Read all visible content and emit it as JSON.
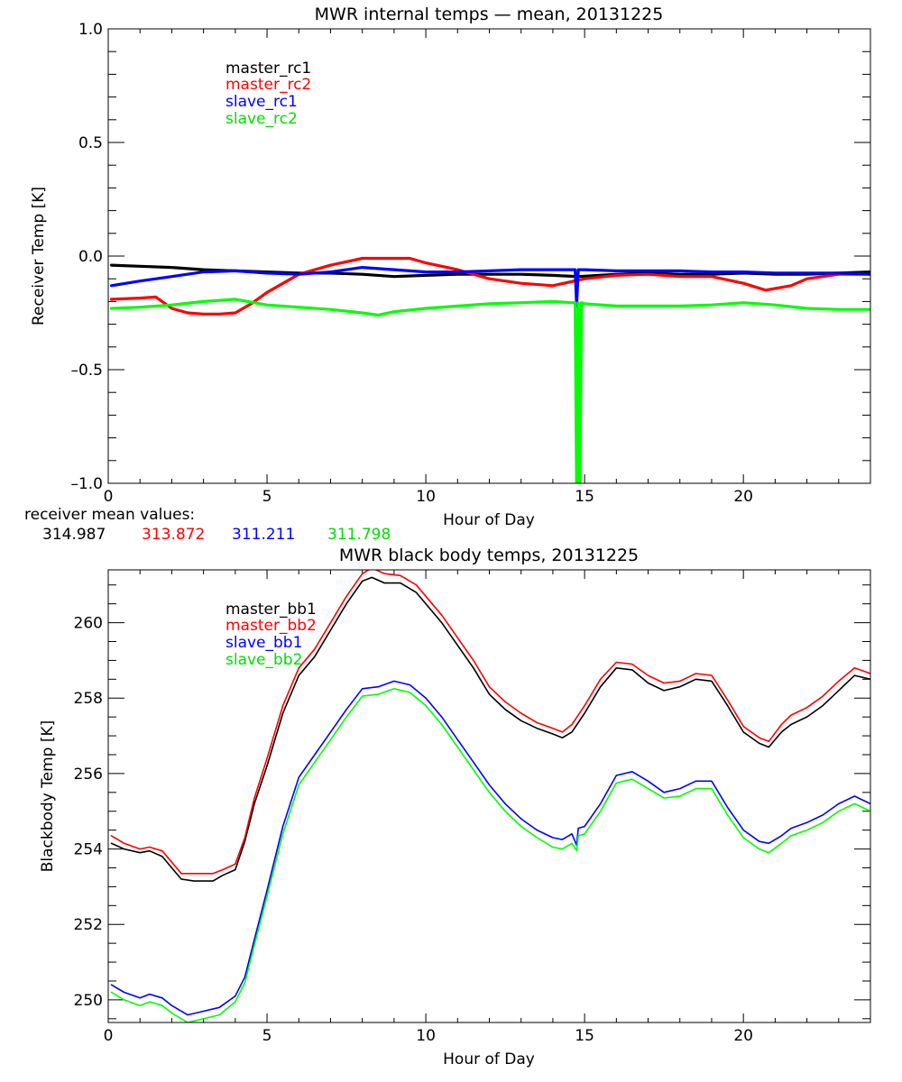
{
  "chart_data": [
    {
      "type": "line",
      "title": "MWR internal temps — mean, 20131225",
      "xlabel": "Hour of Day",
      "ylabel": "Receiver Temp [K]",
      "xlim": [
        0,
        24
      ],
      "ylim": [
        -1.0,
        1.0
      ],
      "xticks": [
        0,
        5,
        10,
        15,
        20
      ],
      "xtick_labels": [
        "0",
        "5",
        "10",
        "15",
        "20"
      ],
      "yticks": [
        -1.0,
        -0.5,
        0.0,
        0.5,
        1.0
      ],
      "ytick_labels": [
        "–1.0",
        "–0.5",
        "0.0",
        "0.5",
        "1.0"
      ],
      "legend_position": "top-left",
      "series": [
        {
          "name": "master_rc1",
          "color": "#000000",
          "x": [
            0.1,
            1,
            2,
            3,
            4,
            5,
            6,
            7,
            8,
            9,
            10,
            11,
            12,
            13,
            14,
            14.8,
            16,
            17,
            18,
            19,
            20,
            21,
            22,
            23,
            24
          ],
          "y": [
            -0.04,
            -0.045,
            -0.05,
            -0.06,
            -0.065,
            -0.07,
            -0.075,
            -0.075,
            -0.08,
            -0.09,
            -0.085,
            -0.08,
            -0.08,
            -0.08,
            -0.085,
            -0.09,
            -0.08,
            -0.075,
            -0.08,
            -0.08,
            -0.075,
            -0.08,
            -0.08,
            -0.075,
            -0.07
          ]
        },
        {
          "name": "master_rc2",
          "color": "#ff0000",
          "x": [
            0.1,
            1,
            1.5,
            2,
            2.5,
            3,
            3.5,
            4,
            4.5,
            5,
            6,
            7,
            8,
            9,
            9.5,
            10,
            11,
            12,
            13,
            14,
            15,
            16,
            17,
            18,
            19,
            20,
            20.7,
            21.5,
            22,
            23,
            24
          ],
          "y": [
            -0.19,
            -0.185,
            -0.18,
            -0.23,
            -0.25,
            -0.255,
            -0.255,
            -0.25,
            -0.21,
            -0.16,
            -0.08,
            -0.04,
            -0.01,
            -0.01,
            -0.01,
            -0.03,
            -0.06,
            -0.1,
            -0.12,
            -0.13,
            -0.1,
            -0.085,
            -0.08,
            -0.09,
            -0.09,
            -0.12,
            -0.15,
            -0.13,
            -0.1,
            -0.08,
            -0.08
          ]
        },
        {
          "name": "slave_rc1",
          "color": "#0000ff",
          "x": [
            0.1,
            1,
            2,
            3,
            4,
            5,
            6,
            7,
            8,
            9,
            10,
            11,
            12,
            13,
            14,
            14.7,
            14.75,
            14.8,
            14.85,
            15,
            16,
            17,
            18,
            19,
            20,
            21,
            22,
            23,
            24
          ],
          "y": [
            -0.13,
            -0.11,
            -0.09,
            -0.07,
            -0.065,
            -0.075,
            -0.08,
            -0.07,
            -0.05,
            -0.06,
            -0.07,
            -0.07,
            -0.065,
            -0.06,
            -0.06,
            -0.06,
            -0.22,
            -0.06,
            -0.06,
            -0.06,
            -0.065,
            -0.065,
            -0.065,
            -0.07,
            -0.07,
            -0.075,
            -0.075,
            -0.075,
            -0.08
          ]
        },
        {
          "name": "slave_rc2",
          "color": "#00ff00",
          "x": [
            0.1,
            1,
            2,
            3,
            4,
            5,
            6,
            7,
            8,
            8.5,
            9,
            10,
            11,
            12,
            13,
            14,
            14.6,
            14.7,
            14.75,
            14.8,
            14.85,
            14.9,
            15,
            16,
            17,
            18,
            19,
            20,
            21,
            22,
            23,
            24
          ],
          "y": [
            -0.23,
            -0.225,
            -0.215,
            -0.2,
            -0.19,
            -0.215,
            -0.225,
            -0.235,
            -0.25,
            -0.26,
            -0.245,
            -0.23,
            -0.22,
            -0.21,
            -0.205,
            -0.2,
            -0.205,
            -0.205,
            -1.05,
            -0.205,
            -1.05,
            -0.205,
            -0.21,
            -0.22,
            -0.22,
            -0.22,
            -0.215,
            -0.205,
            -0.215,
            -0.23,
            -0.235,
            -0.235
          ]
        }
      ]
    },
    {
      "type": "line",
      "title": "MWR black body temps, 20131225",
      "xlabel": "Hour of Day",
      "ylabel": "Blackbody Temp [K]",
      "xlim": [
        0,
        24
      ],
      "ylim": [
        249.4,
        261.4
      ],
      "xticks": [
        0,
        5,
        10,
        15,
        20
      ],
      "xtick_labels": [
        "0",
        "5",
        "10",
        "15",
        "20"
      ],
      "yticks": [
        250,
        252,
        254,
        256,
        258,
        260
      ],
      "ytick_labels": [
        "250",
        "252",
        "254",
        "256",
        "258",
        "260"
      ],
      "legend_position": "top-left",
      "series": [
        {
          "name": "master_bb1",
          "color": "#000000",
          "x": [
            0.1,
            0.5,
            1,
            1.3,
            1.7,
            2,
            2.3,
            2.7,
            3,
            3.3,
            3.6,
            4,
            4.3,
            4.6,
            5,
            5.5,
            6,
            6.5,
            7,
            7.5,
            8,
            8.3,
            8.7,
            9.2,
            9.7,
            10,
            10.5,
            11,
            11.5,
            12,
            12.5,
            13,
            13.5,
            14,
            14.3,
            14.6,
            15,
            15.5,
            16,
            16.5,
            17,
            17.5,
            18,
            18.5,
            19,
            19.5,
            20,
            20.5,
            20.8,
            21.2,
            21.5,
            22,
            22.5,
            23,
            23.5,
            24
          ],
          "y": [
            254.15,
            254,
            253.9,
            253.95,
            253.8,
            253.5,
            253.2,
            253.15,
            253.15,
            253.15,
            253.3,
            253.45,
            254.2,
            255.2,
            256.2,
            257.6,
            258.6,
            259.1,
            259.8,
            260.5,
            261.1,
            261.2,
            261.05,
            261.05,
            260.8,
            260.5,
            260,
            259.4,
            258.8,
            258.1,
            257.7,
            257.4,
            257.2,
            257.05,
            256.95,
            257.1,
            257.6,
            258.3,
            258.8,
            258.75,
            258.4,
            258.2,
            258.3,
            258.5,
            258.45,
            257.8,
            257.1,
            256.8,
            256.7,
            257.1,
            257.3,
            257.5,
            257.8,
            258.2,
            258.6,
            258.5
          ]
        },
        {
          "name": "master_bb2",
          "color": "#ff0000",
          "x": [
            0.1,
            0.5,
            1,
            1.3,
            1.7,
            2,
            2.3,
            2.7,
            3,
            3.3,
            3.6,
            4,
            4.3,
            4.6,
            5,
            5.5,
            6,
            6.5,
            7,
            7.5,
            8,
            8.3,
            8.7,
            9.2,
            9.7,
            10,
            10.5,
            11,
            11.5,
            12,
            12.5,
            13,
            13.5,
            14,
            14.3,
            14.6,
            15,
            15.5,
            16,
            16.5,
            17,
            17.5,
            18,
            18.5,
            19,
            19.5,
            20,
            20.5,
            20.8,
            21.2,
            21.5,
            22,
            22.5,
            23,
            23.5,
            24
          ],
          "y": [
            254.35,
            254.15,
            254,
            254.05,
            253.95,
            253.65,
            253.35,
            253.35,
            253.35,
            253.35,
            253.45,
            253.6,
            254.3,
            255.35,
            256.4,
            257.8,
            258.8,
            259.3,
            260,
            260.7,
            261.3,
            261.45,
            261.3,
            261.25,
            261,
            260.7,
            260.2,
            259.6,
            259,
            258.3,
            257.9,
            257.6,
            257.35,
            257.2,
            257.1,
            257.3,
            257.8,
            258.5,
            258.95,
            258.9,
            258.6,
            258.4,
            258.45,
            258.65,
            258.6,
            257.95,
            257.25,
            256.95,
            256.85,
            257.3,
            257.55,
            257.75,
            258.05,
            258.45,
            258.8,
            258.65
          ]
        },
        {
          "name": "slave_bb1",
          "color": "#0000ff",
          "x": [
            0.1,
            0.5,
            1,
            1.3,
            1.7,
            2,
            2.5,
            3,
            3.5,
            4,
            4.3,
            4.6,
            5,
            5.5,
            6,
            6.5,
            7,
            7.5,
            8,
            8.5,
            9,
            9.5,
            10,
            10.5,
            11,
            11.5,
            12,
            12.5,
            13,
            13.5,
            14,
            14.3,
            14.6,
            14.75,
            14.8,
            15,
            15.5,
            16,
            16.5,
            17,
            17.5,
            18,
            18.5,
            19,
            19.5,
            20,
            20.5,
            20.8,
            21.2,
            21.5,
            22,
            22.5,
            23,
            23.5,
            24
          ],
          "y": [
            250.4,
            250.2,
            250.05,
            250.15,
            250.05,
            249.85,
            249.6,
            249.7,
            249.8,
            250.1,
            250.6,
            251.6,
            252.9,
            254.6,
            255.9,
            256.5,
            257.1,
            257.7,
            258.25,
            258.3,
            258.45,
            258.35,
            258.0,
            257.5,
            256.9,
            256.3,
            255.7,
            255.2,
            254.8,
            254.5,
            254.3,
            254.25,
            254.4,
            254.1,
            254.55,
            254.6,
            255.2,
            255.95,
            256.05,
            255.8,
            255.5,
            255.6,
            255.8,
            255.8,
            255.1,
            254.5,
            254.2,
            254.15,
            254.35,
            254.55,
            254.7,
            254.9,
            255.2,
            255.4,
            255.2
          ]
        },
        {
          "name": "slave_bb2",
          "color": "#00ff00",
          "x": [
            0.1,
            0.5,
            1,
            1.3,
            1.7,
            2,
            2.5,
            3,
            3.5,
            4,
            4.3,
            4.6,
            5,
            5.5,
            6,
            6.5,
            7,
            7.5,
            8,
            8.5,
            9,
            9.5,
            10,
            10.5,
            11,
            11.5,
            12,
            12.5,
            13,
            13.5,
            14,
            14.3,
            14.6,
            14.75,
            14.8,
            15,
            15.5,
            16,
            16.5,
            17,
            17.5,
            18,
            18.5,
            19,
            19.5,
            20,
            20.5,
            20.8,
            21.2,
            21.5,
            22,
            22.5,
            23,
            23.5,
            24
          ],
          "y": [
            250.2,
            250.0,
            249.85,
            249.95,
            249.85,
            249.65,
            249.4,
            249.5,
            249.6,
            249.95,
            250.45,
            251.45,
            252.75,
            254.4,
            255.7,
            256.3,
            256.9,
            257.5,
            258.05,
            258.1,
            258.25,
            258.15,
            257.8,
            257.3,
            256.7,
            256.1,
            255.5,
            255.0,
            254.6,
            254.3,
            254.05,
            254.0,
            254.15,
            253.95,
            254.35,
            254.4,
            255.0,
            255.75,
            255.85,
            255.6,
            255.35,
            255.4,
            255.6,
            255.6,
            254.9,
            254.3,
            254.0,
            253.9,
            254.15,
            254.35,
            254.5,
            254.7,
            255.0,
            255.2,
            255.0
          ]
        }
      ]
    }
  ],
  "mean_values": {
    "label": "receiver mean values:",
    "values": [
      {
        "text": "314.987",
        "color": "#000000"
      },
      {
        "text": "313.872",
        "color": "#ff0000"
      },
      {
        "text": "311.211",
        "color": "#0000ff"
      },
      {
        "text": "311.798",
        "color": "#00ff00"
      }
    ]
  }
}
